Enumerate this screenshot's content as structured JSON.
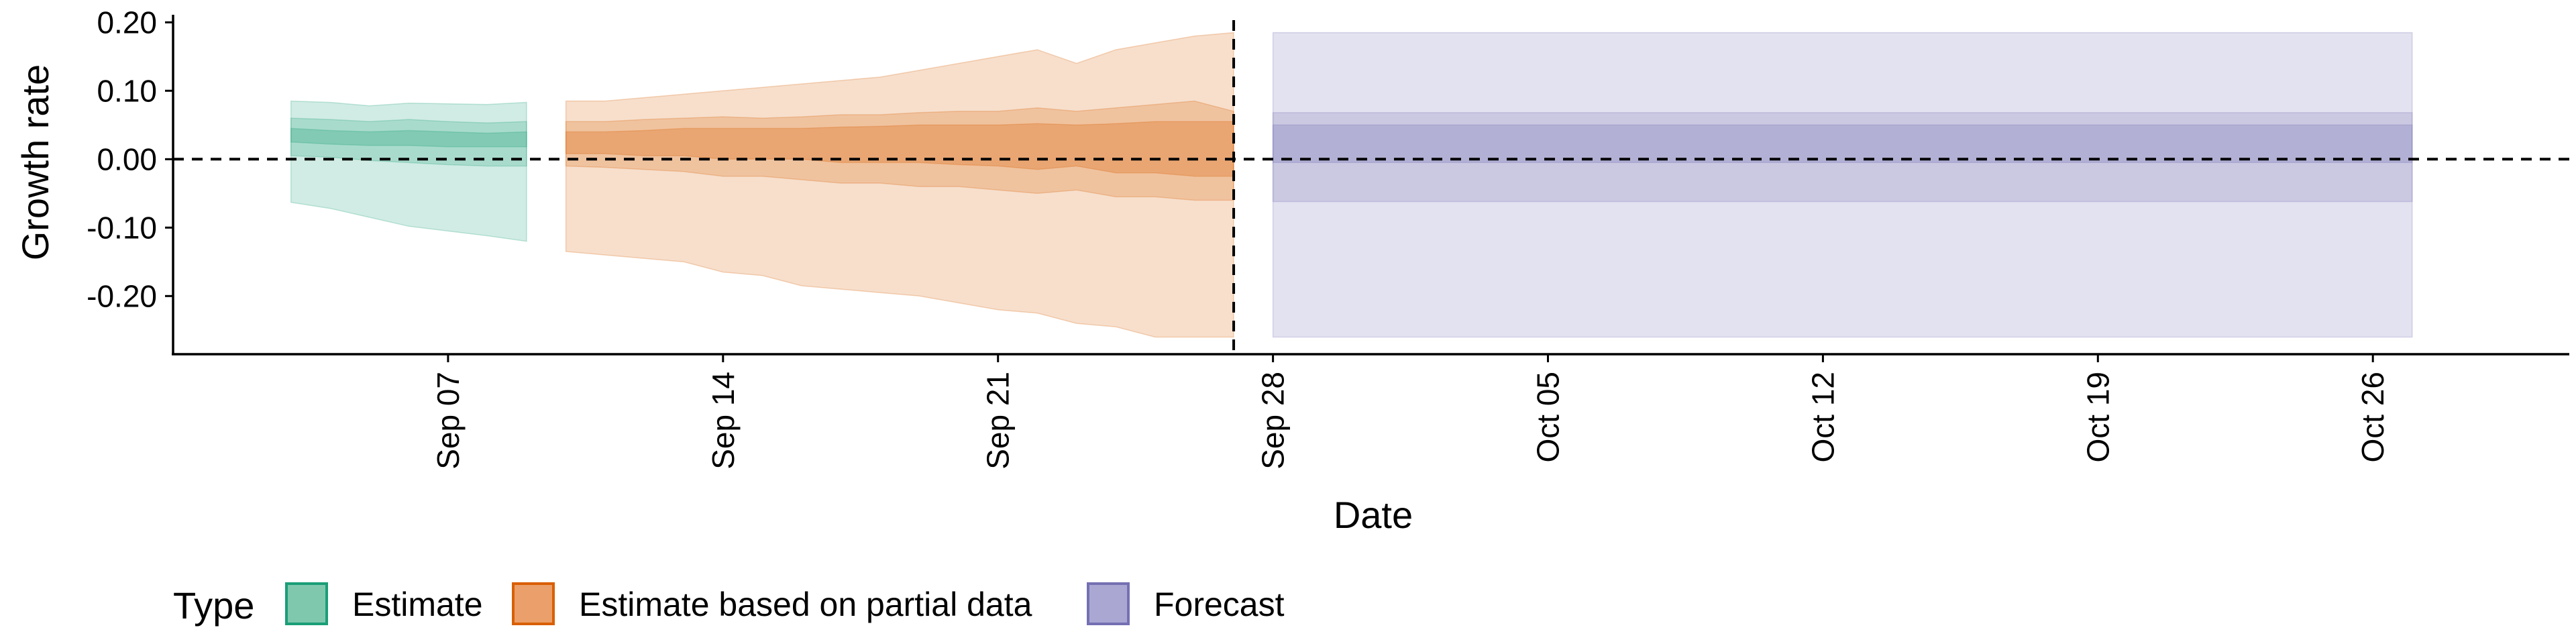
{
  "chart_data": {
    "type": "area",
    "title": "",
    "xlabel": "Date",
    "ylabel": "Growth rate",
    "x_type": "date",
    "xlim": [
      "2020-08-31",
      "2020-10-31"
    ],
    "ylim": [
      -0.285,
      0.215
    ],
    "y_ticks": [
      0.2,
      0.1,
      0.0,
      -0.1,
      -0.2
    ],
    "y_tick_labels": [
      "0.20",
      "0.10",
      "0.00",
      "-0.10",
      "-0.20"
    ],
    "x_ticks": [
      "2020-09-07",
      "2020-09-14",
      "2020-09-21",
      "2020-09-28",
      "2020-10-05",
      "2020-10-12",
      "2020-10-19",
      "2020-10-26"
    ],
    "x_tick_labels": [
      "Sep 07",
      "Sep 14",
      "Sep 21",
      "Sep 28",
      "Oct 05",
      "Oct 12",
      "Oct 19",
      "Oct 26"
    ],
    "reference_lines": {
      "horizontal_y": 0.0,
      "vertical_x": "2020-09-27"
    },
    "grid": false,
    "legend": {
      "title": "Type",
      "position": "bottom",
      "entries": [
        {
          "label": "Estimate",
          "fill": "#7fc8ae",
          "stroke": "#1b9e77"
        },
        {
          "label": "Estimate based on partial data",
          "fill": "#eba06b",
          "stroke": "#d95f02"
        },
        {
          "label": "Forecast",
          "fill": "#aaa8d3",
          "stroke": "#7570b3"
        }
      ]
    },
    "series": [
      {
        "name": "Estimate",
        "color": "#1b9e77",
        "x": [
          "2020-09-03",
          "2020-09-04",
          "2020-09-05",
          "2020-09-06",
          "2020-09-07",
          "2020-09-08",
          "2020-09-09"
        ],
        "lower90": [
          -0.063,
          -0.072,
          -0.085,
          -0.098,
          -0.105,
          -0.112,
          -0.12
        ],
        "upper90": [
          0.085,
          0.083,
          0.078,
          0.082,
          0.081,
          0.08,
          0.083
        ],
        "lower50": [
          0.005,
          0.003,
          -0.002,
          -0.005,
          -0.008,
          -0.01,
          -0.01
        ],
        "upper50": [
          0.06,
          0.058,
          0.055,
          0.058,
          0.055,
          0.053,
          0.055
        ],
        "lower20": [
          0.025,
          0.022,
          0.02,
          0.02,
          0.018,
          0.018,
          0.018
        ],
        "upper20": [
          0.045,
          0.042,
          0.04,
          0.042,
          0.04,
          0.038,
          0.04
        ]
      },
      {
        "name": "Estimate based on partial data",
        "color": "#d95f02",
        "x": [
          "2020-09-10",
          "2020-09-11",
          "2020-09-12",
          "2020-09-13",
          "2020-09-14",
          "2020-09-15",
          "2020-09-16",
          "2020-09-17",
          "2020-09-18",
          "2020-09-19",
          "2020-09-20",
          "2020-09-21",
          "2020-09-22",
          "2020-09-23",
          "2020-09-24",
          "2020-09-25",
          "2020-09-26",
          "2020-09-27"
        ],
        "lower90": [
          -0.135,
          -0.14,
          -0.145,
          -0.15,
          -0.165,
          -0.17,
          -0.185,
          -0.19,
          -0.195,
          -0.2,
          -0.21,
          -0.22,
          -0.225,
          -0.24,
          -0.245,
          -0.26,
          -0.26,
          -0.26
        ],
        "upper90": [
          0.085,
          0.085,
          0.09,
          0.095,
          0.1,
          0.105,
          0.11,
          0.115,
          0.12,
          0.13,
          0.14,
          0.15,
          0.16,
          0.14,
          0.16,
          0.17,
          0.18,
          0.185
        ],
        "lower50": [
          -0.01,
          -0.012,
          -0.015,
          -0.018,
          -0.025,
          -0.025,
          -0.03,
          -0.035,
          -0.035,
          -0.04,
          -0.04,
          -0.045,
          -0.05,
          -0.045,
          -0.055,
          -0.055,
          -0.06,
          -0.06
        ],
        "upper50": [
          0.055,
          0.055,
          0.058,
          0.06,
          0.062,
          0.06,
          0.062,
          0.065,
          0.065,
          0.068,
          0.07,
          0.07,
          0.075,
          0.07,
          0.075,
          0.08,
          0.085,
          0.07
        ],
        "lower20": [
          0.008,
          0.008,
          0.005,
          0.005,
          0.0,
          0.0,
          0.0,
          -0.005,
          -0.005,
          -0.005,
          -0.008,
          -0.01,
          -0.015,
          -0.01,
          -0.02,
          -0.02,
          -0.025,
          -0.025
        ],
        "upper20": [
          0.04,
          0.04,
          0.042,
          0.045,
          0.045,
          0.045,
          0.045,
          0.047,
          0.048,
          0.05,
          0.05,
          0.05,
          0.052,
          0.05,
          0.052,
          0.055,
          0.055,
          0.055
        ]
      },
      {
        "name": "Forecast",
        "color": "#7570b3",
        "x": [
          "2020-09-28",
          "2020-10-27"
        ],
        "lower90": [
          -0.26,
          -0.26
        ],
        "upper90": [
          0.185,
          0.185
        ],
        "lower50": [
          -0.062,
          -0.062
        ],
        "upper50": [
          0.068,
          0.068
        ],
        "lower20": [
          -0.005,
          -0.005
        ],
        "upper20": [
          0.05,
          0.05
        ]
      }
    ]
  }
}
